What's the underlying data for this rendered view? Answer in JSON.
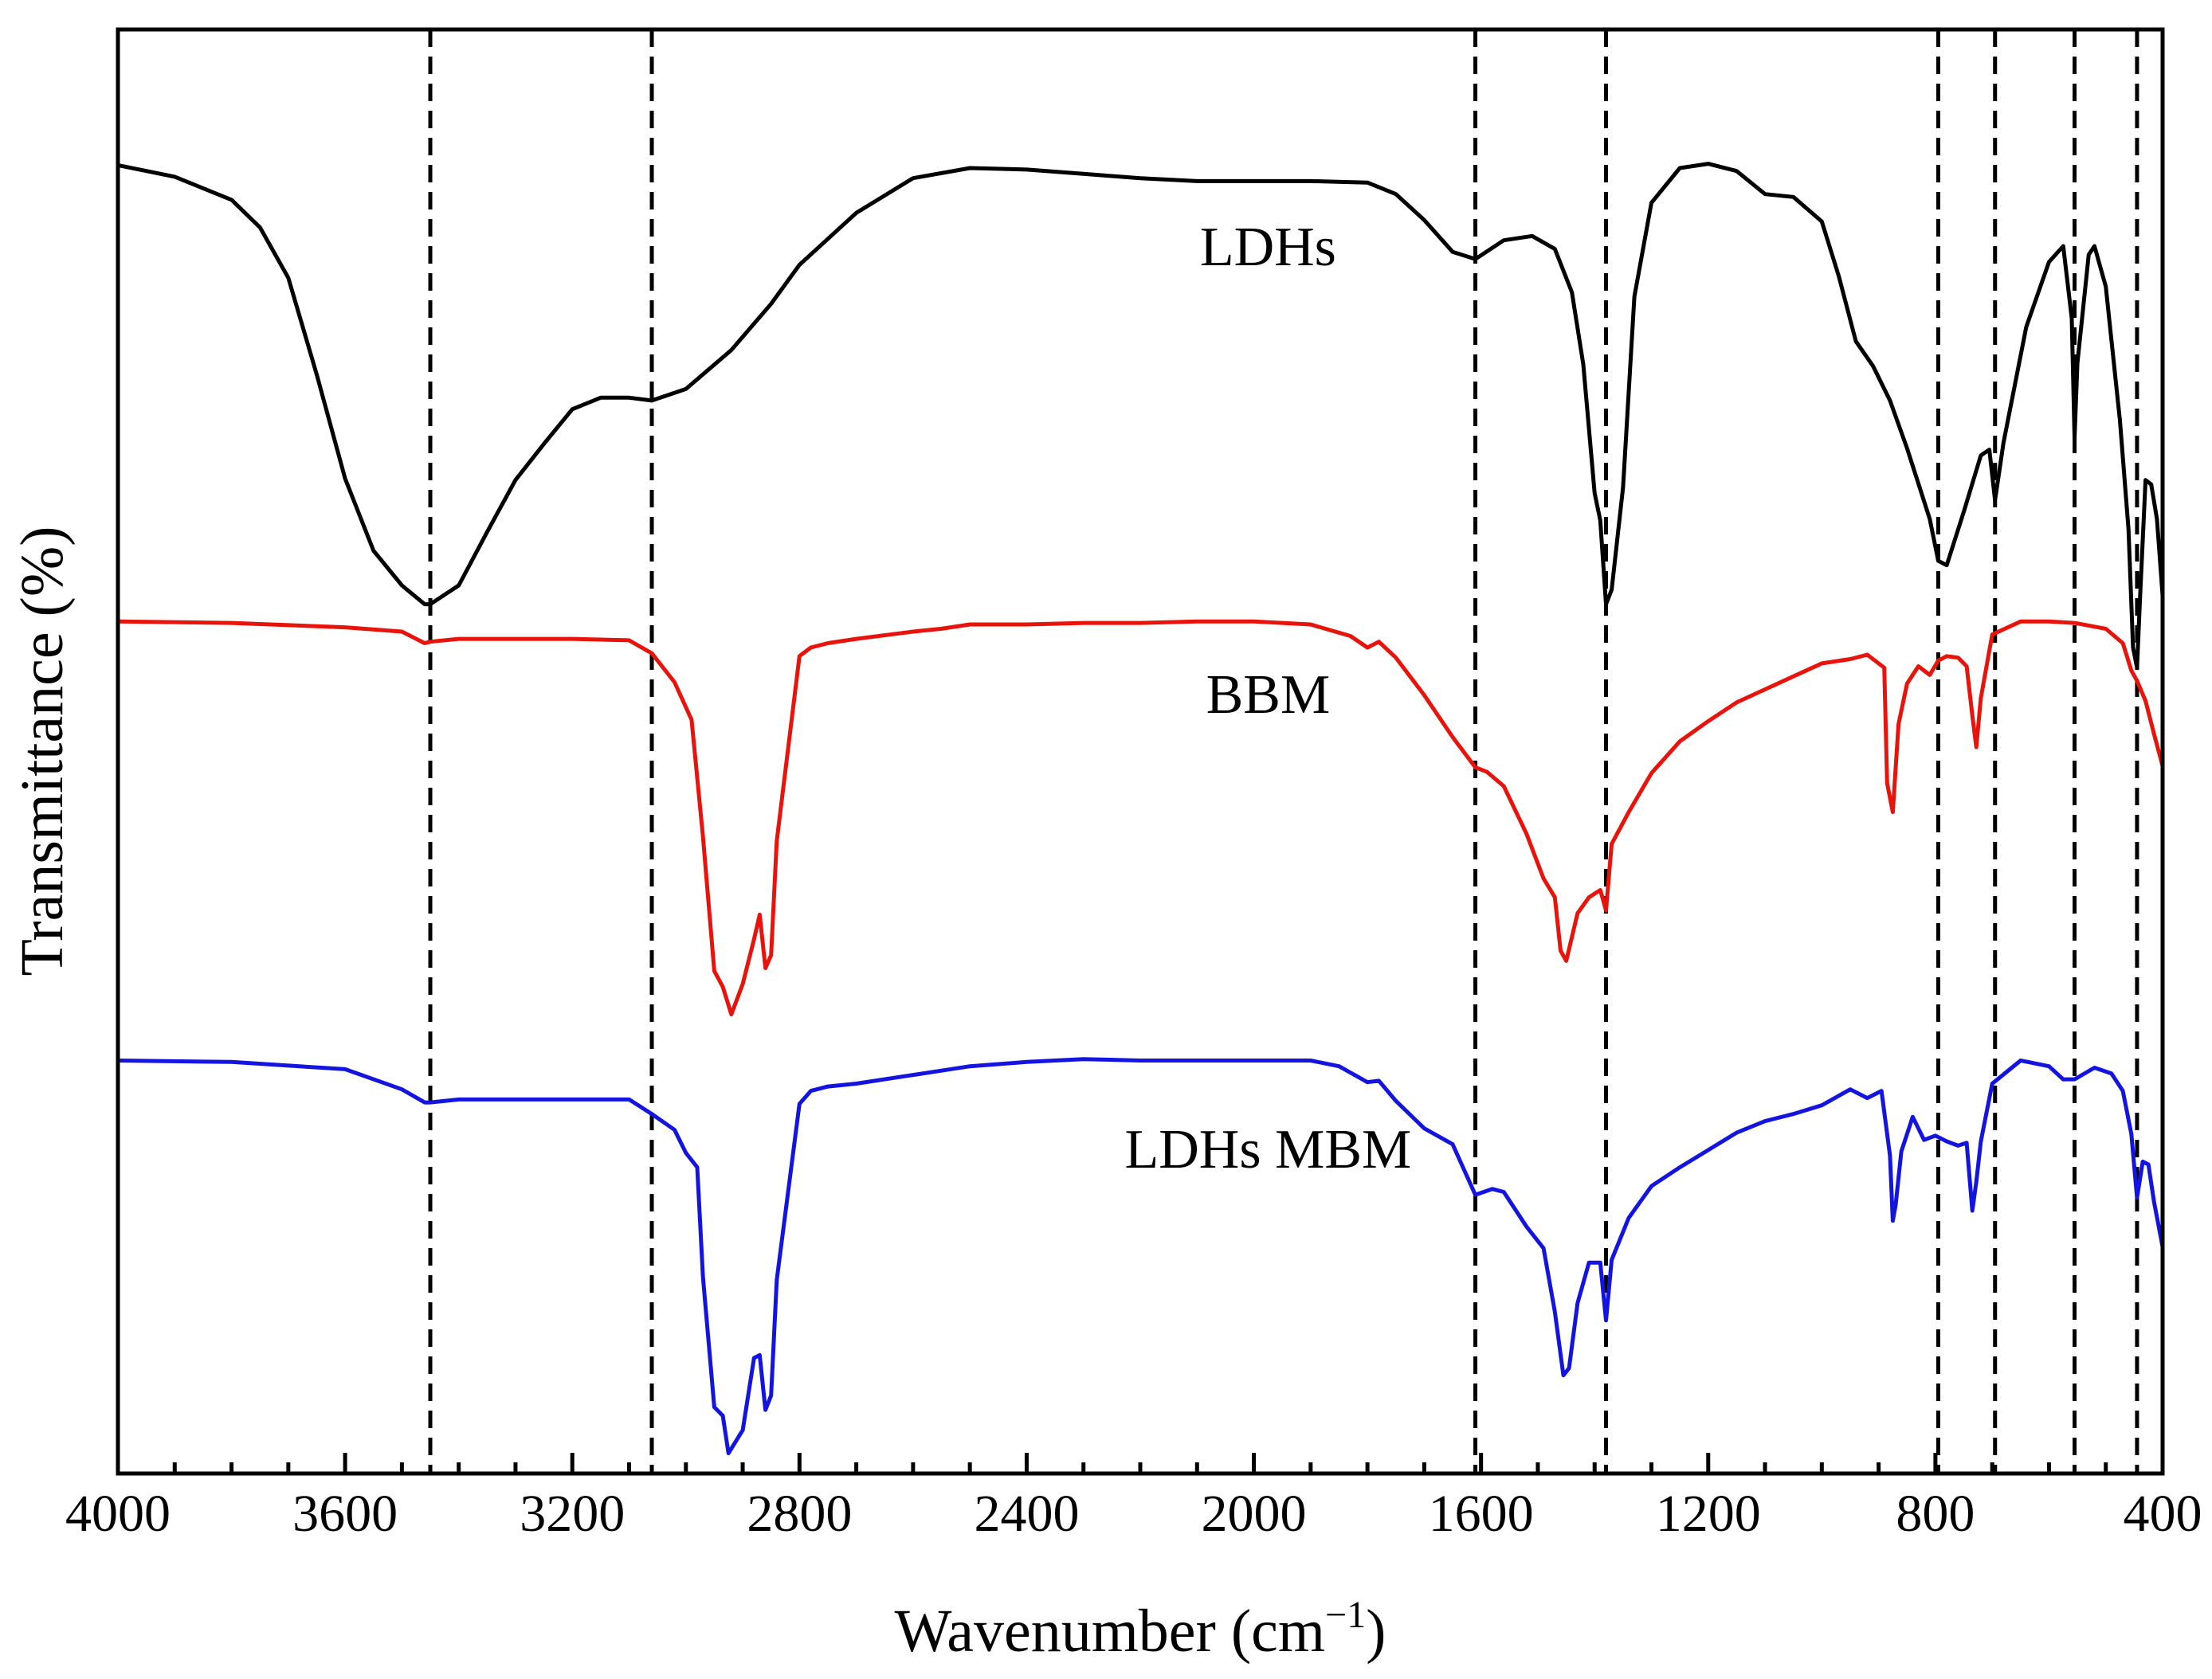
{
  "chart_data": {
    "type": "line",
    "title": "",
    "xlabel": "Wavenumber (cm⁻¹)",
    "xlabel_main": "Wavenumber (cm",
    "xlabel_sup": "−1",
    "xlabel_close": ")",
    "ylabel": "Transmittance (%)",
    "xlim": [
      4000,
      400
    ],
    "ylim": [
      0,
      100
    ],
    "x_reversed": true,
    "yticks_visible": false,
    "grid": false,
    "xticks": [
      4000,
      3600,
      3200,
      2800,
      2400,
      2000,
      1600,
      1200,
      800,
      400
    ],
    "xtick_labels": [
      "4000",
      "3600",
      "3200",
      "2800",
      "2400",
      "2000",
      "1600",
      "1200",
      "800",
      "400"
    ],
    "reference_lines": [
      3450,
      3060,
      1610,
      1380,
      795,
      695,
      555,
      445
    ],
    "reference_style": "dashed",
    "series": [
      {
        "name": "LDHs",
        "color": "#000000",
        "label_at": {
          "x": 1975,
          "y": 85
        },
        "points": [
          [
            4000,
            90.6
          ],
          [
            3900,
            89.8
          ],
          [
            3800,
            88.2
          ],
          [
            3750,
            86.3
          ],
          [
            3700,
            82.8
          ],
          [
            3650,
            76.1
          ],
          [
            3600,
            68.9
          ],
          [
            3550,
            63.9
          ],
          [
            3500,
            61.5
          ],
          [
            3460,
            60.2
          ],
          [
            3450,
            60.2
          ],
          [
            3400,
            61.5
          ],
          [
            3350,
            65.2
          ],
          [
            3300,
            68.8
          ],
          [
            3250,
            71.3
          ],
          [
            3200,
            73.7
          ],
          [
            3150,
            74.5
          ],
          [
            3100,
            74.5
          ],
          [
            3060,
            74.3
          ],
          [
            3000,
            75.1
          ],
          [
            2920,
            77.8
          ],
          [
            2850,
            81.0
          ],
          [
            2800,
            83.7
          ],
          [
            2700,
            87.3
          ],
          [
            2600,
            89.7
          ],
          [
            2500,
            90.4
          ],
          [
            2400,
            90.3
          ],
          [
            2300,
            90.0
          ],
          [
            2200,
            89.7
          ],
          [
            2100,
            89.5
          ],
          [
            2000,
            89.5
          ],
          [
            1900,
            89.5
          ],
          [
            1800,
            89.4
          ],
          [
            1750,
            88.6
          ],
          [
            1700,
            86.8
          ],
          [
            1650,
            84.6
          ],
          [
            1610,
            84.1
          ],
          [
            1560,
            85.4
          ],
          [
            1510,
            85.7
          ],
          [
            1470,
            84.8
          ],
          [
            1440,
            81.8
          ],
          [
            1420,
            76.8
          ],
          [
            1400,
            67.9
          ],
          [
            1390,
            66.0
          ],
          [
            1380,
            60.2
          ],
          [
            1370,
            61.2
          ],
          [
            1350,
            68.3
          ],
          [
            1330,
            81.5
          ],
          [
            1300,
            88.0
          ],
          [
            1250,
            90.4
          ],
          [
            1200,
            90.7
          ],
          [
            1150,
            90.2
          ],
          [
            1100,
            88.6
          ],
          [
            1050,
            88.4
          ],
          [
            1000,
            86.7
          ],
          [
            970,
            82.9
          ],
          [
            940,
            78.4
          ],
          [
            910,
            76.7
          ],
          [
            880,
            74.3
          ],
          [
            850,
            71.0
          ],
          [
            810,
            66.1
          ],
          [
            795,
            63.2
          ],
          [
            780,
            62.9
          ],
          [
            750,
            66.6
          ],
          [
            720,
            70.5
          ],
          [
            705,
            70.9
          ],
          [
            695,
            67.4
          ],
          [
            680,
            71.4
          ],
          [
            640,
            79.4
          ],
          [
            600,
            83.9
          ],
          [
            575,
            85.0
          ],
          [
            560,
            80.0
          ],
          [
            555,
            71.7
          ],
          [
            550,
            76.9
          ],
          [
            530,
            84.4
          ],
          [
            520,
            85.0
          ],
          [
            500,
            82.2
          ],
          [
            475,
            72.9
          ],
          [
            460,
            65.4
          ],
          [
            452,
            57.2
          ],
          [
            445,
            55.8
          ],
          [
            440,
            60.4
          ],
          [
            430,
            68.8
          ],
          [
            420,
            68.5
          ],
          [
            410,
            66.1
          ],
          [
            400,
            60.8
          ]
        ]
      },
      {
        "name": "BBM",
        "color": "#e8140c",
        "label_at": {
          "x": 1975,
          "y": 54
        },
        "points": [
          [
            4000,
            59.0
          ],
          [
            3800,
            58.9
          ],
          [
            3600,
            58.6
          ],
          [
            3500,
            58.3
          ],
          [
            3460,
            57.5
          ],
          [
            3450,
            57.6
          ],
          [
            3400,
            57.8
          ],
          [
            3300,
            57.8
          ],
          [
            3200,
            57.8
          ],
          [
            3100,
            57.7
          ],
          [
            3060,
            56.8
          ],
          [
            3020,
            54.8
          ],
          [
            2990,
            52.2
          ],
          [
            2970,
            44.1
          ],
          [
            2950,
            34.8
          ],
          [
            2935,
            33.7
          ],
          [
            2920,
            31.8
          ],
          [
            2900,
            33.9
          ],
          [
            2880,
            37.0
          ],
          [
            2870,
            38.7
          ],
          [
            2860,
            35.0
          ],
          [
            2850,
            35.9
          ],
          [
            2840,
            43.8
          ],
          [
            2800,
            56.6
          ],
          [
            2780,
            57.2
          ],
          [
            2750,
            57.5
          ],
          [
            2700,
            57.8
          ],
          [
            2600,
            58.3
          ],
          [
            2550,
            58.5
          ],
          [
            2500,
            58.8
          ],
          [
            2400,
            58.8
          ],
          [
            2300,
            58.9
          ],
          [
            2200,
            58.9
          ],
          [
            2100,
            59.0
          ],
          [
            2000,
            59.0
          ],
          [
            1900,
            58.8
          ],
          [
            1830,
            58.0
          ],
          [
            1800,
            57.2
          ],
          [
            1780,
            57.6
          ],
          [
            1750,
            56.5
          ],
          [
            1700,
            53.9
          ],
          [
            1650,
            51.0
          ],
          [
            1610,
            48.9
          ],
          [
            1590,
            48.6
          ],
          [
            1560,
            47.6
          ],
          [
            1520,
            44.3
          ],
          [
            1490,
            41.2
          ],
          [
            1470,
            39.9
          ],
          [
            1460,
            36.2
          ],
          [
            1450,
            35.5
          ],
          [
            1430,
            38.8
          ],
          [
            1410,
            39.9
          ],
          [
            1390,
            40.4
          ],
          [
            1380,
            39.0
          ],
          [
            1370,
            43.6
          ],
          [
            1340,
            45.8
          ],
          [
            1300,
            48.5
          ],
          [
            1250,
            50.7
          ],
          [
            1200,
            52.1
          ],
          [
            1150,
            53.4
          ],
          [
            1100,
            54.3
          ],
          [
            1050,
            55.2
          ],
          [
            1000,
            56.1
          ],
          [
            950,
            56.4
          ],
          [
            920,
            56.7
          ],
          [
            890,
            55.8
          ],
          [
            885,
            47.8
          ],
          [
            875,
            45.8
          ],
          [
            865,
            51.9
          ],
          [
            850,
            54.7
          ],
          [
            830,
            55.9
          ],
          [
            810,
            55.3
          ],
          [
            795,
            56.3
          ],
          [
            780,
            56.6
          ],
          [
            760,
            56.5
          ],
          [
            745,
            55.9
          ],
          [
            735,
            52.5
          ],
          [
            728,
            50.3
          ],
          [
            720,
            53.7
          ],
          [
            700,
            58.1
          ],
          [
            650,
            59.0
          ],
          [
            600,
            59.0
          ],
          [
            555,
            58.9
          ],
          [
            500,
            58.5
          ],
          [
            470,
            57.5
          ],
          [
            455,
            55.6
          ],
          [
            445,
            54.9
          ],
          [
            430,
            53.5
          ],
          [
            415,
            51.2
          ],
          [
            400,
            49.0
          ]
        ]
      },
      {
        "name": "LDHs MBM",
        "color": "#1414e0",
        "label_at": {
          "x": 1975,
          "y": 22.5
        },
        "points": [
          [
            4000,
            28.6
          ],
          [
            3800,
            28.5
          ],
          [
            3600,
            28.0
          ],
          [
            3500,
            26.6
          ],
          [
            3460,
            25.7
          ],
          [
            3450,
            25.7
          ],
          [
            3400,
            25.9
          ],
          [
            3300,
            25.9
          ],
          [
            3200,
            25.9
          ],
          [
            3100,
            25.9
          ],
          [
            3060,
            24.9
          ],
          [
            3020,
            23.8
          ],
          [
            3000,
            22.2
          ],
          [
            2980,
            21.2
          ],
          [
            2970,
            13.6
          ],
          [
            2950,
            4.6
          ],
          [
            2935,
            4.0
          ],
          [
            2925,
            1.4
          ],
          [
            2900,
            3.0
          ],
          [
            2880,
            8.0
          ],
          [
            2870,
            8.2
          ],
          [
            2860,
            4.4
          ],
          [
            2850,
            5.4
          ],
          [
            2840,
            13.4
          ],
          [
            2800,
            25.6
          ],
          [
            2780,
            26.5
          ],
          [
            2750,
            26.8
          ],
          [
            2700,
            27.0
          ],
          [
            2600,
            27.6
          ],
          [
            2550,
            27.9
          ],
          [
            2500,
            28.2
          ],
          [
            2400,
            28.5
          ],
          [
            2300,
            28.7
          ],
          [
            2200,
            28.6
          ],
          [
            2100,
            28.6
          ],
          [
            2000,
            28.6
          ],
          [
            1900,
            28.6
          ],
          [
            1850,
            28.2
          ],
          [
            1800,
            27.1
          ],
          [
            1780,
            27.2
          ],
          [
            1750,
            25.8
          ],
          [
            1700,
            23.9
          ],
          [
            1650,
            22.8
          ],
          [
            1610,
            19.3
          ],
          [
            1580,
            19.7
          ],
          [
            1560,
            19.5
          ],
          [
            1520,
            17.1
          ],
          [
            1490,
            15.6
          ],
          [
            1470,
            11.2
          ],
          [
            1455,
            6.8
          ],
          [
            1445,
            7.3
          ],
          [
            1430,
            11.8
          ],
          [
            1410,
            14.6
          ],
          [
            1390,
            14.6
          ],
          [
            1380,
            10.6
          ],
          [
            1370,
            14.8
          ],
          [
            1340,
            17.7
          ],
          [
            1300,
            19.9
          ],
          [
            1250,
            21.2
          ],
          [
            1200,
            22.4
          ],
          [
            1150,
            23.6
          ],
          [
            1100,
            24.4
          ],
          [
            1050,
            24.9
          ],
          [
            1000,
            25.5
          ],
          [
            950,
            26.6
          ],
          [
            920,
            26.0
          ],
          [
            895,
            26.5
          ],
          [
            880,
            22.0
          ],
          [
            875,
            17.5
          ],
          [
            870,
            18.6
          ],
          [
            860,
            22.3
          ],
          [
            840,
            24.7
          ],
          [
            820,
            23.1
          ],
          [
            800,
            23.4
          ],
          [
            780,
            23.0
          ],
          [
            760,
            22.7
          ],
          [
            745,
            22.9
          ],
          [
            735,
            18.2
          ],
          [
            728,
            20.2
          ],
          [
            720,
            23.0
          ],
          [
            700,
            27.0
          ],
          [
            650,
            28.6
          ],
          [
            600,
            28.2
          ],
          [
            575,
            27.3
          ],
          [
            555,
            27.3
          ],
          [
            520,
            28.1
          ],
          [
            490,
            27.7
          ],
          [
            470,
            26.5
          ],
          [
            455,
            23.5
          ],
          [
            445,
            19.1
          ],
          [
            435,
            21.6
          ],
          [
            425,
            21.4
          ],
          [
            415,
            18.8
          ],
          [
            400,
            15.7
          ]
        ]
      }
    ]
  }
}
